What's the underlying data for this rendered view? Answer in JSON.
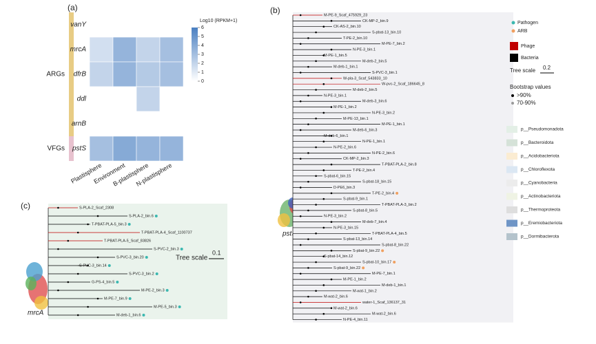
{
  "panels": {
    "a": {
      "label": "(a)",
      "colorbar_title": "Log10 (RPKM+1)",
      "rows": [
        "vanY",
        "mrcA",
        "dfrB",
        "ddl",
        "arnB",
        "pstS"
      ],
      "columns": [
        "Plastisphere",
        "Environment",
        "B-plastisphere",
        "N-plastisphere"
      ],
      "groups": [
        {
          "label": "ARGs",
          "color": "#e8cc84"
        },
        {
          "label": "VFGs",
          "color": "#e8c2cf"
        }
      ],
      "row_group": [
        0,
        0,
        0,
        0,
        0,
        1
      ],
      "values": [
        [
          0,
          0,
          0,
          0
        ],
        [
          1.5,
          3.5,
          2,
          3
        ],
        [
          2,
          3.5,
          2.5,
          3
        ],
        [
          0,
          0,
          2,
          0
        ],
        [
          0,
          0,
          0,
          0
        ],
        [
          3,
          4,
          3.5,
          3.5
        ]
      ],
      "zlim": [
        0,
        6
      ],
      "zticks": [
        0,
        1,
        2,
        3,
        4,
        5,
        6
      ],
      "color_low": "#ffffff",
      "color_high": "#4a7fc1"
    },
    "b": {
      "label": "(b)",
      "gene": "pstS",
      "tree_scale_label": "Tree scale",
      "tree_scale": "0.2",
      "marker_legend": [
        {
          "label": "Pathogen",
          "color": "#3bb8b0"
        },
        {
          "label": "ARB",
          "color": "#f0a060"
        }
      ],
      "type_legend": [
        {
          "label": "Phage",
          "color": "#c00000"
        },
        {
          "label": "Bacteria",
          "color": "#000000"
        }
      ],
      "bootstrap_title": "Bootstrap values",
      "bootstrap": [
        {
          "label": ">90%",
          "color": "#000000"
        },
        {
          "label": "70-90%",
          "color": "#999999"
        }
      ],
      "phyla": [
        {
          "label": "p__Pseudomonadota",
          "color": "#e3efe6"
        },
        {
          "label": "p__Bacteroidota",
          "color": "#d5e2d8"
        },
        {
          "label": "p__Acidobacteriota",
          "color": "#fbecd2"
        },
        {
          "label": "p__Chloroflexota",
          "color": "#dbe7f3"
        },
        {
          "label": "p__Cyanobacteria",
          "color": "#ececec"
        },
        {
          "label": "p__Actinobacteriota",
          "color": "#eff3e4"
        },
        {
          "label": "p__Thermoproteota",
          "color": "#dedede"
        },
        {
          "label": "p__Eremiobacteriota",
          "color": "#6f95c6"
        },
        {
          "label": "p__Dormibacterota",
          "color": "#b4c3cc"
        }
      ],
      "leaves": [
        {
          "label": "M-PE-9_Scaf_475929_23",
          "color": "#c00000"
        },
        {
          "label": "CK-MP-2_bin.9"
        },
        {
          "label": "CK-AS-2_bin.10"
        },
        {
          "label": "S-pbat-13_bin.10"
        },
        {
          "label": "T-PE-2_bin.10"
        },
        {
          "label": "M-PE-7_bin.2"
        },
        {
          "label": "N-PE-3_bin.1"
        },
        {
          "label": "M-PE-1_bin.5"
        },
        {
          "label": "M-deb-2_bin.5"
        },
        {
          "label": "M-deb-1_bin.1"
        },
        {
          "label": "S-PVC-3_bin.1"
        },
        {
          "label": "W-pla-3_Scaf_543833_10",
          "color": "#c00000"
        },
        {
          "label": "W-pvc-2_Scaf_186645_8",
          "color": "#c00000"
        },
        {
          "label": "M-deb-2_bin.5"
        },
        {
          "label": "N-PE-3_bin.1"
        },
        {
          "label": "M-deb-3_bin.6"
        },
        {
          "label": "M-PE-1_bin.2"
        },
        {
          "label": "N-PE-3_bin.2"
        },
        {
          "label": "M-PE-13_bin.1"
        },
        {
          "label": "M-PE-1_bin.1"
        },
        {
          "label": "M-deb-6_bin.3"
        },
        {
          "label": "M-deb-6_bin.1"
        },
        {
          "label": "N-PE-1_bin.1"
        },
        {
          "label": "N-PE-2_bin.6"
        },
        {
          "label": "N-PE-2_bin.6"
        },
        {
          "label": "CK-MP-2_bin.3"
        },
        {
          "label": "T-PBAT-PLA-2_bin.8"
        },
        {
          "label": "T-PE-2_bin.4"
        },
        {
          "label": "S-pbat-6_bin.15"
        },
        {
          "label": "S-pbat-18_bin.15"
        },
        {
          "label": "D-PE6_bin.3"
        },
        {
          "label": "T-PE-2_bin.4",
          "marker": "ARB"
        },
        {
          "label": "S-pbat-9_bin.1"
        },
        {
          "label": "T-PBAT-PLA-3_bin.2"
        },
        {
          "label": "S-pbat-8_bin.5"
        },
        {
          "label": "N-PE-3_bin.2"
        },
        {
          "label": "M-deb-7_bin.4"
        },
        {
          "label": "N-PE-3_bin.15"
        },
        {
          "label": "T-PBAT-PLA-4_bin.5"
        },
        {
          "label": "S-pbat-13_bin.14"
        },
        {
          "label": "S-pbat-8_bin.22"
        },
        {
          "label": "S-pbat-9_bin.22",
          "marker": "ARB"
        },
        {
          "label": "S-pbat-14_bin.12"
        },
        {
          "label": "S-pbat-10_bin.17",
          "marker": "ARB"
        },
        {
          "label": "S-pbat-9_bin.22",
          "marker": "ARB"
        },
        {
          "label": "M-PE-7_bin.1"
        },
        {
          "label": "M-PE-1_bin.2"
        },
        {
          "label": "M-deb-1_bin.1"
        },
        {
          "label": "M-wat-1_bin.2"
        },
        {
          "label": "M-wat-2_bin.6"
        },
        {
          "label": "water-1_Scaf_136137_31",
          "color": "#c00000"
        },
        {
          "label": "M-wat-2_bin.6"
        },
        {
          "label": "M-wat-2_bin.6"
        },
        {
          "label": "N-PE-4_bin.11"
        }
      ]
    },
    "c": {
      "label": "(c)",
      "gene": "mrcA",
      "tree_scale_label": "Tree scale",
      "tree_scale": "0.1",
      "leaves": [
        {
          "label": "S-PLA-2_Scaf_2308",
          "color": "#c00000"
        },
        {
          "label": "S-PLA-2_bin.6",
          "marker": "Pathogen"
        },
        {
          "label": "T-PBAT-PLA-5_bin.3",
          "marker": "Pathogen"
        },
        {
          "label": "T-PBAT-PLA-4_Scaf_1100737",
          "color": "#c00000"
        },
        {
          "label": "T-PBAT-PLA-5_Scaf_83826",
          "color": "#c00000"
        },
        {
          "label": "S-PVC-2_bin.3",
          "marker": "Pathogen"
        },
        {
          "label": "S-PVC-3_bin.20",
          "marker": "Pathogen"
        },
        {
          "label": "S-PVC-3_bin.14",
          "marker": "Pathogen"
        },
        {
          "label": "S-PVC-3_bin.2",
          "marker": "Pathogen"
        },
        {
          "label": "G-PS-4_bin.5",
          "marker": "Pathogen"
        },
        {
          "label": "M-PE-2_bin.3",
          "marker": "Pathogen"
        },
        {
          "label": "M-PE-7_bin.9",
          "marker": "Pathogen"
        },
        {
          "label": "M-PE-5_bin.3",
          "marker": "Pathogen"
        },
        {
          "label": "M-deb-1_bin.6",
          "marker": "Pathogen"
        }
      ]
    }
  }
}
